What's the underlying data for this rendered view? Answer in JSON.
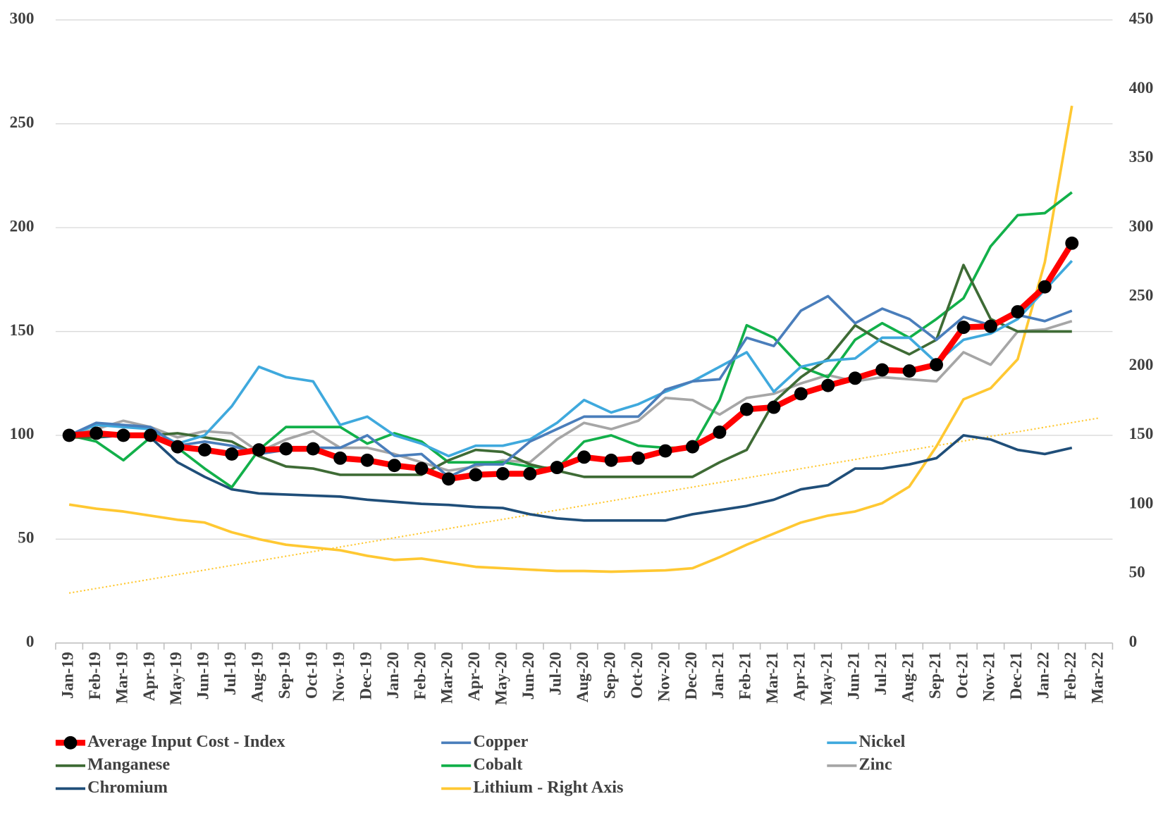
{
  "chart_data": {
    "type": "line",
    "categories": [
      "Jan-19",
      "Feb-19",
      "Mar-19",
      "Apr-19",
      "May-19",
      "Jun-19",
      "Jul-19",
      "Aug-19",
      "Sep-19",
      "Oct-19",
      "Nov-19",
      "Dec-19",
      "Jan-20",
      "Feb-20",
      "Mar-20",
      "Apr-20",
      "May-20",
      "Jun-20",
      "Jul-20",
      "Aug-20",
      "Sep-20",
      "Oct-20",
      "Nov-20",
      "Dec-20",
      "Jan-21",
      "Feb-21",
      "Mar-21",
      "Apr-21",
      "May-21",
      "Jun-21",
      "Jul-21",
      "Aug-21",
      "Sep-21",
      "Oct-21",
      "Nov-21",
      "Dec-21",
      "Jan-22",
      "Feb-22",
      "Mar-22"
    ],
    "ylim": [
      0,
      300
    ],
    "yticks": [
      0,
      50,
      100,
      150,
      200,
      250,
      300
    ],
    "y2lim": [
      0,
      450
    ],
    "y2ticks": [
      0,
      50,
      100,
      150,
      200,
      250,
      300,
      350,
      400,
      450
    ],
    "grid": true,
    "series": [
      {
        "name": "Average Input Cost - Index",
        "color": "#ff0000",
        "marker": "circle",
        "marker_color": "#000000",
        "values": [
          100,
          101,
          100,
          100,
          94.5,
          93,
          91,
          93,
          93.5,
          93.5,
          89,
          88,
          85.5,
          84,
          79,
          81,
          81.5,
          81.5,
          84.5,
          89.5,
          88,
          89,
          92.5,
          94.5,
          101.5,
          112.5,
          113.5,
          120,
          124,
          127.5,
          131.5,
          131,
          134,
          152,
          152.5,
          159.5,
          171.5,
          192.5,
          null
        ]
      },
      {
        "name": "Copper",
        "color": "#4a7ebb",
        "values": [
          100,
          106,
          105,
          104,
          95,
          97,
          95,
          91,
          93,
          94,
          94,
          100,
          90,
          91,
          80,
          86,
          86,
          97,
          103,
          109,
          109,
          109,
          122,
          126,
          127,
          147,
          143,
          160,
          167,
          154,
          161,
          156,
          146,
          157,
          153,
          158,
          155,
          160,
          null
        ]
      },
      {
        "name": "Nickel",
        "color": "#3fa9dd",
        "values": [
          100,
          105,
          104,
          103,
          96,
          100,
          114,
          133,
          128,
          126,
          105,
          109,
          100,
          96,
          90,
          95,
          95,
          98,
          106,
          117,
          111,
          115,
          121,
          126,
          133,
          140,
          121,
          133,
          136,
          137,
          147,
          147,
          135,
          146,
          149,
          156,
          170,
          184,
          null
        ]
      },
      {
        "name": "Manganese",
        "color": "#3e6b35",
        "values": [
          99,
          99,
          101,
          100,
          101,
          99,
          97,
          90,
          85,
          84,
          81,
          81,
          81,
          81,
          88,
          93,
          92,
          86,
          83,
          80,
          80,
          80,
          80,
          80,
          87,
          93,
          116,
          128,
          137,
          153,
          145,
          139,
          146,
          182,
          156,
          150,
          150,
          150,
          null
        ]
      },
      {
        "name": "Cobalt",
        "color": "#12b04a",
        "values": [
          100,
          97,
          88,
          99,
          94,
          84,
          75,
          93,
          104,
          104,
          104,
          96,
          101,
          97,
          87,
          87,
          87,
          85,
          84,
          97,
          100,
          95,
          94,
          94,
          117,
          153,
          147,
          133,
          128,
          146,
          154,
          147,
          156,
          166,
          191,
          206,
          207,
          217,
          null
        ]
      },
      {
        "name": "Zinc",
        "color": "#a6a6a6",
        "values": [
          100,
          103,
          107,
          104,
          99,
          102,
          101,
          92,
          98,
          102,
          94,
          94,
          91,
          87,
          83,
          85,
          88,
          87,
          98,
          106,
          103,
          107,
          118,
          117,
          110,
          118,
          120,
          125,
          129,
          126,
          128,
          127,
          126,
          140,
          134,
          150,
          151,
          155,
          null
        ]
      },
      {
        "name": "Chromium",
        "color": "#1f4e79",
        "values": [
          100,
          99,
          100,
          99,
          87,
          80,
          74,
          72,
          71.5,
          71,
          70.5,
          69,
          68,
          67,
          66.5,
          65.5,
          65,
          62,
          60,
          59,
          59,
          59,
          59,
          62,
          64,
          66,
          69,
          74,
          76,
          84,
          84,
          86,
          89,
          100,
          98,
          93,
          91,
          94,
          null
        ]
      },
      {
        "name": "Lithium - Right Axis",
        "color": "#ffc832",
        "axis": "y2",
        "trendline": true,
        "values": [
          100,
          97,
          95,
          92,
          89,
          87,
          80,
          75,
          71,
          69,
          67,
          63,
          60,
          61,
          58,
          55,
          54,
          53,
          52,
          52,
          51.5,
          52,
          52.5,
          54,
          62,
          71,
          79,
          87,
          92,
          95,
          101,
          113,
          142,
          176,
          184,
          205,
          275,
          388,
          null
        ]
      }
    ]
  }
}
